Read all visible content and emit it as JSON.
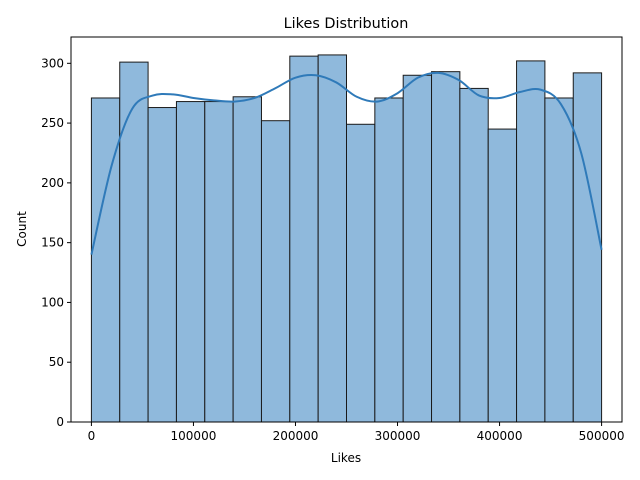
{
  "chart_data": {
    "type": "bar",
    "title": "Likes Distribution",
    "xlabel": "Likes",
    "ylabel": "Count",
    "xlim": [
      -20000,
      520000
    ],
    "ylim": [
      0,
      322
    ],
    "bin_edges": [
      0,
      27778,
      55556,
      83333,
      111111,
      138889,
      166667,
      194444,
      222222,
      250000,
      277778,
      305556,
      333333,
      361111,
      388889,
      416667,
      444444,
      472222,
      500000
    ],
    "values": [
      271,
      301,
      263,
      268,
      268,
      272,
      252,
      306,
      307,
      249,
      271,
      290,
      293,
      279,
      245,
      302,
      271,
      292
    ],
    "kde": {
      "x": [
        0,
        20000,
        40000,
        60000,
        80000,
        100000,
        120000,
        140000,
        160000,
        180000,
        200000,
        220000,
        240000,
        260000,
        280000,
        300000,
        320000,
        340000,
        360000,
        380000,
        400000,
        420000,
        440000,
        460000,
        480000,
        500000
      ],
      "y": [
        140,
        215,
        262,
        273,
        274,
        271,
        269,
        268,
        271,
        279,
        288,
        290,
        284,
        272,
        268,
        275,
        288,
        292,
        286,
        273,
        271,
        276,
        278,
        266,
        225,
        144
      ]
    },
    "x_ticks": [
      0,
      100000,
      200000,
      300000,
      400000,
      500000
    ],
    "x_tick_labels": [
      "0",
      "100000",
      "200000",
      "300000",
      "400000",
      "500000"
    ],
    "y_ticks": [
      0,
      50,
      100,
      150,
      200,
      250,
      300
    ],
    "y_tick_labels": [
      "0",
      "50",
      "100",
      "150",
      "200",
      "250",
      "300"
    ],
    "grid": false,
    "bar_color": "#8fb9dc",
    "bar_edge_color": "#1a1a1a",
    "kde_color": "#2f7ab9"
  }
}
